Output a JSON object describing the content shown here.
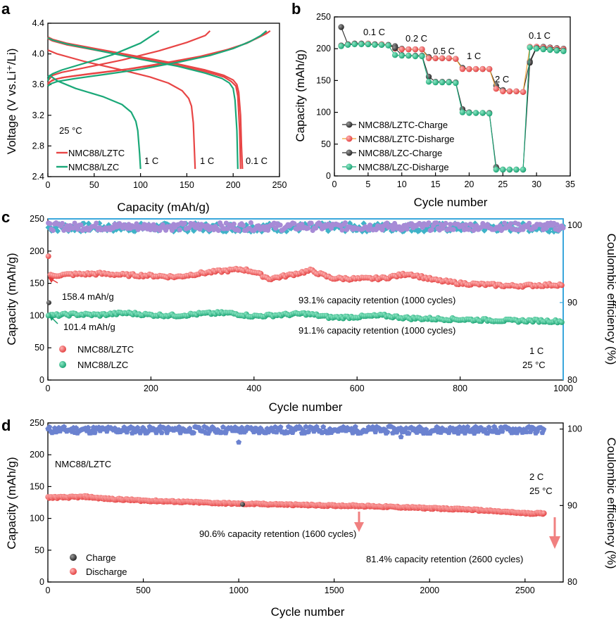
{
  "chart_data": [
    {
      "panel": "a",
      "type": "line",
      "xlabel": "Capacity (mAh/g)",
      "ylabel": "Voltage (V vs.Li⁺/Li)",
      "xlim": [
        0,
        250
      ],
      "ylim": [
        2.4,
        4.4
      ],
      "xticks": [
        "0",
        "50",
        "100",
        "150",
        "200",
        "250"
      ],
      "yticks": [
        "2.4",
        "2.8",
        "3.2",
        "3.6",
        "4.0",
        "4.4"
      ],
      "temperature": "25 °C",
      "legend": [
        {
          "name": "NMC88/LZTC",
          "color": "#e84545"
        },
        {
          "name": "NMC88/LZC",
          "color": "#1aa878"
        }
      ],
      "annotations": [
        "1 C",
        "1 C",
        "0.1 C"
      ],
      "series": [
        {
          "name": "NMC88/LZTC 0.1 C charge",
          "color": "#e84545",
          "x": [
            0,
            2,
            5,
            15,
            40,
            80,
            120,
            160,
            190,
            210,
            225,
            235,
            240
          ],
          "y": [
            3.6,
            3.63,
            3.66,
            3.69,
            3.73,
            3.79,
            3.86,
            3.95,
            4.04,
            4.12,
            4.2,
            4.26,
            4.3
          ]
        },
        {
          "name": "NMC88/LZTC 0.1 C charge b",
          "color": "#e84545",
          "x": [
            0,
            3,
            8,
            20,
            45,
            85,
            125,
            165,
            195,
            215,
            228,
            236
          ],
          "y": [
            3.62,
            3.64,
            3.67,
            3.7,
            3.74,
            3.8,
            3.88,
            3.97,
            4.06,
            4.14,
            4.22,
            4.29
          ]
        },
        {
          "name": "NMC88/LZTC 0.1 C discharge",
          "color": "#e84545",
          "x": [
            0,
            5,
            20,
            60,
            100,
            140,
            170,
            190,
            200,
            204,
            206,
            208,
            209,
            210
          ],
          "y": [
            4.22,
            4.19,
            4.14,
            4.05,
            3.96,
            3.87,
            3.79,
            3.72,
            3.66,
            3.6,
            3.5,
            3.2,
            2.8,
            2.5
          ]
        },
        {
          "name": "NMC88/LZTC 0.1 C discharge b",
          "color": "#e84545",
          "x": [
            0,
            5,
            20,
            60,
            100,
            140,
            170,
            190,
            198,
            203,
            205,
            207,
            208
          ],
          "y": [
            4.2,
            4.17,
            4.12,
            4.03,
            3.94,
            3.85,
            3.77,
            3.7,
            3.64,
            3.58,
            3.45,
            3.0,
            2.5
          ]
        },
        {
          "name": "NMC88/LZTC 1 C charge",
          "color": "#e84545",
          "x": [
            0,
            5,
            15,
            40,
            80,
            120,
            150,
            170,
            175
          ],
          "y": [
            3.65,
            3.72,
            3.76,
            3.82,
            3.92,
            4.04,
            4.15,
            4.24,
            4.3
          ]
        },
        {
          "name": "NMC88/LZTC 1 C discharge",
          "color": "#e84545",
          "x": [
            0,
            10,
            40,
            80,
            110,
            130,
            145,
            152,
            155,
            157,
            158,
            159
          ],
          "y": [
            4.05,
            4.0,
            3.9,
            3.79,
            3.7,
            3.62,
            3.52,
            3.42,
            3.32,
            3.1,
            2.8,
            2.5
          ]
        },
        {
          "name": "NMC88/LZC 0.1 C charge",
          "color": "#1aa878",
          "x": [
            0,
            3,
            10,
            30,
            60,
            100,
            140,
            175,
            200,
            218,
            230,
            236
          ],
          "y": [
            3.58,
            3.61,
            3.64,
            3.68,
            3.73,
            3.8,
            3.89,
            3.98,
            4.07,
            4.16,
            4.24,
            4.3
          ]
        },
        {
          "name": "NMC88/LZC 0.1 C discharge",
          "color": "#1aa878",
          "x": [
            0,
            5,
            20,
            60,
            100,
            140,
            170,
            188,
            196,
            200,
            202,
            204,
            205
          ],
          "y": [
            4.21,
            4.18,
            4.13,
            4.03,
            3.93,
            3.84,
            3.75,
            3.68,
            3.62,
            3.55,
            3.4,
            3.0,
            2.5
          ]
        },
        {
          "name": "NMC88/LZC 1 C charge",
          "color": "#1aa878",
          "x": [
            0,
            5,
            15,
            40,
            70,
            100,
            120
          ],
          "y": [
            3.7,
            3.74,
            3.79,
            3.88,
            3.99,
            4.14,
            4.3
          ]
        },
        {
          "name": "NMC88/LZC 1 C discharge",
          "color": "#1aa878",
          "x": [
            0,
            2,
            10,
            30,
            60,
            80,
            90,
            95,
            97,
            98,
            99,
            100
          ],
          "y": [
            3.65,
            3.72,
            3.65,
            3.55,
            3.44,
            3.34,
            3.24,
            3.12,
            3.0,
            2.85,
            2.7,
            2.5
          ]
        }
      ]
    },
    {
      "panel": "b",
      "type": "scatter",
      "xlabel": "Cycle number",
      "ylabel": "Capacity (mAh/g)",
      "xlim": [
        0,
        35
      ],
      "ylim": [
        0,
        250
      ],
      "xticks": [
        "0",
        "5",
        "10",
        "15",
        "20",
        "25",
        "30",
        "35"
      ],
      "yticks": [
        "0",
        "50",
        "100",
        "150",
        "200",
        "250"
      ],
      "rate_labels": [
        "0.1 C",
        "0.2 C",
        "0.5 C",
        "1 C",
        "2 C",
        "0.1 C"
      ],
      "x": [
        1,
        2,
        3,
        4,
        5,
        6,
        7,
        8,
        9,
        10,
        11,
        12,
        13,
        14,
        15,
        16,
        17,
        18,
        19,
        20,
        21,
        22,
        23,
        24,
        25,
        26,
        27,
        28,
        29,
        30,
        31,
        32,
        33,
        34
      ],
      "series": [
        {
          "name": "NMC88/LZTC-Charge",
          "color": "#2b2b2b",
          "values": [
            234,
            207,
            208,
            208,
            208,
            207,
            207,
            206,
            204,
            200,
            199,
            199,
            199,
            187,
            185,
            185,
            185,
            184,
            170,
            168,
            168,
            168,
            168,
            142,
            135,
            133,
            133,
            132,
            180,
            203,
            203,
            202,
            201,
            200
          ]
        },
        {
          "name": "NMC88/LZTC-Disharge",
          "color": "#e84545",
          "values": [
            205,
            207,
            208,
            208,
            208,
            207,
            207,
            206,
            200,
            199,
            199,
            199,
            199,
            185,
            185,
            185,
            185,
            184,
            168,
            168,
            168,
            168,
            168,
            137,
            133,
            133,
            133,
            132,
            203,
            203,
            202,
            201,
            200,
            199
          ]
        },
        {
          "name": "NMC88/LZC-Charge",
          "color": "#2b2b2b",
          "values": [
            205,
            207,
            208,
            208,
            207,
            207,
            206,
            206,
            201,
            190,
            189,
            189,
            189,
            156,
            148,
            148,
            148,
            147,
            105,
            100,
            99,
            99,
            99,
            14,
            10,
            10,
            10,
            10,
            178,
            201,
            200,
            199,
            198,
            197
          ]
        },
        {
          "name": "NMC88/LZC-Disharge",
          "color": "#1aa878",
          "values": [
            204,
            206,
            207,
            207,
            207,
            206,
            206,
            205,
            190,
            189,
            189,
            188,
            188,
            148,
            147,
            147,
            147,
            146,
            100,
            99,
            99,
            99,
            98,
            10,
            10,
            10,
            10,
            10,
            202,
            200,
            199,
            198,
            197,
            196
          ]
        }
      ]
    },
    {
      "panel": "c",
      "type": "scatter",
      "xlabel": "Cycle number",
      "ylabel": "Capacity (mAh/g)",
      "y2label": "Coulombic efficiency (%)",
      "xlim": [
        0,
        1000
      ],
      "ylim": [
        0,
        250
      ],
      "y2lim": [
        80,
        100.8
      ],
      "xticks": [
        "0",
        "200",
        "400",
        "600",
        "800",
        "1000"
      ],
      "yticks": [
        "0",
        "50",
        "100",
        "150",
        "200",
        "250"
      ],
      "y2ticks": [
        "80",
        "90",
        "100"
      ],
      "conditions": [
        "1 C",
        "25 °C"
      ],
      "initial_labels": [
        "158.4 mAh/g",
        "101.4 mAh/g"
      ],
      "retention_labels": [
        "93.1% capacity retention (1000 cycles)",
        "91.1% capacity retention (1000 cycles)"
      ],
      "legend": [
        {
          "name": "NMC88/LZTC",
          "color": "#e84545"
        },
        {
          "name": "NMC88/LZC",
          "color": "#1aa878"
        }
      ],
      "series": [
        {
          "name": "NMC88/LZTC",
          "color": "#e84545",
          "x": [
            1,
            5,
            50,
            100,
            150,
            200,
            250,
            300,
            350,
            375,
            400,
            430,
            470,
            510,
            550,
            600,
            650,
            700,
            750,
            800,
            850,
            900,
            950,
            1000
          ],
          "values": [
            192,
            162,
            164,
            165,
            163,
            162,
            160,
            166,
            170,
            172,
            168,
            157,
            163,
            170,
            158,
            157,
            158,
            165,
            155,
            150,
            148,
            146,
            147,
            148
          ]
        },
        {
          "name": "NMC88/LZC",
          "color": "#1aa878",
          "x": [
            1,
            5,
            50,
            100,
            150,
            200,
            250,
            300,
            350,
            400,
            450,
            500,
            550,
            600,
            650,
            700,
            750,
            800,
            850,
            900,
            950,
            1000
          ],
          "values": [
            100,
            100,
            102,
            101,
            104,
            101,
            100,
            103,
            104,
            99,
            101,
            103,
            97,
            98,
            100,
            96,
            95,
            94,
            93,
            92,
            92,
            91
          ]
        },
        {
          "name": "CE NMC88/LZTC",
          "color": "#a78bd6",
          "x": [
            0,
            1000
          ],
          "values": [
            99.8,
            99.8
          ]
        },
        {
          "name": "CE NMC88/LZC",
          "color": "#3fb3c8",
          "x": [
            0,
            1000
          ],
          "values": [
            99.7,
            99.7
          ]
        }
      ]
    },
    {
      "panel": "d",
      "type": "scatter",
      "xlabel": "Cycle number",
      "ylabel": "Capacity (mAh/g)",
      "y2label": "Coulombic efficiency (%)",
      "xlim": [
        0,
        2700
      ],
      "ylim": [
        0,
        250
      ],
      "y2lim": [
        80,
        100.8
      ],
      "xticks": [
        "0",
        "500",
        "1000",
        "1500",
        "2000",
        "2500"
      ],
      "yticks": [
        "0",
        "50",
        "100",
        "150",
        "200",
        "250"
      ],
      "y2ticks": [
        "80",
        "90",
        "100"
      ],
      "sample": "NMC88/LZTC",
      "conditions": [
        "2 C",
        "25 °C"
      ],
      "retention_labels": [
        "90.6% capacity retention (1600 cycles)",
        "81.4% capacity retention (2600 cycles)"
      ],
      "legend": [
        {
          "name": "Charge",
          "color": "#2b2b2b"
        },
        {
          "name": "Discharge",
          "color": "#e84545"
        }
      ],
      "series": [
        {
          "name": "Discharge",
          "color": "#e84545",
          "x": [
            1,
            100,
            200,
            300,
            500,
            800,
            1000,
            1200,
            1500,
            1600,
            1800,
            2000,
            2200,
            2400,
            2500,
            2600
          ],
          "values": [
            133,
            133,
            134,
            131,
            128,
            125,
            123,
            122,
            120,
            120,
            118,
            116,
            114,
            110,
            108,
            108
          ]
        },
        {
          "name": "Coulombic efficiency",
          "color": "#6b82d0",
          "x": [
            0,
            1000,
            1850,
            2600
          ],
          "values": [
            99.9,
            98.3,
            99.0,
            99.8
          ]
        }
      ]
    }
  ]
}
